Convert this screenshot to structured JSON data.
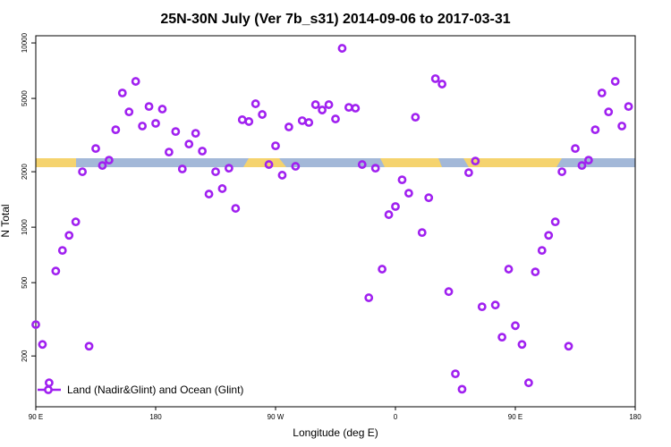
{
  "chart_data": {
    "type": "scatter",
    "title": "25N-30N July (Ver 7b_s31)   2014-09-06 to 2017-03-31",
    "xlabel": "Longitude (deg E)",
    "ylabel": "N Total",
    "x": [
      90,
      95,
      100,
      105,
      110,
      115,
      120,
      125,
      130,
      135,
      140,
      145,
      150,
      155,
      160,
      165,
      170,
      175,
      180,
      185,
      190,
      195,
      200,
      205,
      210,
      215,
      220,
      225,
      230,
      235,
      240,
      245,
      250,
      255,
      260,
      265,
      270,
      275,
      280,
      285,
      290,
      295,
      300,
      305,
      310,
      315,
      320,
      325,
      330,
      335,
      340,
      345,
      350,
      355,
      360,
      365,
      370,
      375,
      380,
      385,
      390,
      395,
      400,
      405,
      410,
      415,
      420,
      425,
      435,
      440,
      445,
      450,
      455,
      460,
      465,
      470,
      475,
      480,
      485,
      490,
      495,
      500,
      505,
      510,
      515,
      520,
      525,
      530,
      535
    ],
    "series": [
      {
        "name": "Land (Nadir&Glint) and Ocean (Glint)",
        "color": "#a020f0",
        "values": [
          296,
          231,
          143,
          578,
          748,
          903,
          1069,
          2000,
          226,
          2673,
          2162,
          2312,
          3380,
          5350,
          4225,
          6185,
          3540,
          4520,
          3660,
          4375,
          2557,
          3305,
          2070,
          2826,
          3233,
          2588,
          1513,
          2000,
          1620,
          2090,
          1265,
          3830,
          3745,
          4676,
          4090,
          2188,
          2765,
          1916,
          3500,
          2140,
          3786,
          3700,
          4624,
          4325,
          4624,
          3868,
          9350,
          4470,
          4424,
          2188,
          414,
          2090,
          592,
          1170,
          1295,
          1808,
          1529,
          3953,
          935,
          1445,
          6400,
          5980,
          447,
          160,
          132,
          1977,
          2286,
          370,
          378,
          253,
          592,
          292,
          231,
          143,
          572,
          748,
          903,
          1069,
          2000,
          226,
          2673,
          2162,
          2312,
          3380,
          5350,
          4225,
          6185,
          3540,
          4520
        ]
      }
    ],
    "xlim": [
      90,
      540
    ],
    "xticks": [
      {
        "value": 90,
        "label": "90 E"
      },
      {
        "value": 180,
        "label": "180"
      },
      {
        "value": 270,
        "label": "90 W"
      },
      {
        "value": 360,
        "label": "0"
      },
      {
        "value": 450,
        "label": "90 E"
      },
      {
        "value": 540,
        "label": "180"
      }
    ],
    "ylim": [
      106,
      10940
    ],
    "yticks": [
      200,
      500,
      1000,
      2000,
      5000,
      10000
    ],
    "yscale": "log",
    "legend": "lower left"
  }
}
